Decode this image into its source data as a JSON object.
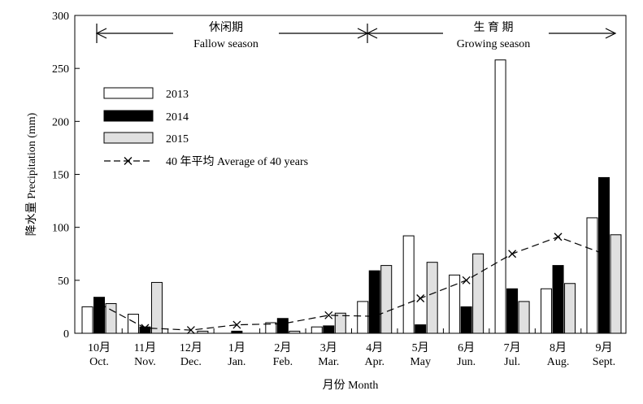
{
  "chart_data": {
    "type": "bar",
    "ylabel": "降水量 Precipitation (mm)",
    "xlabel": "月份 Month",
    "ylim": [
      0,
      300
    ],
    "yticks": [
      0,
      50,
      100,
      150,
      200,
      250,
      300
    ],
    "categories_cn": [
      "10月",
      "11月",
      "12月",
      "1月",
      "2月",
      "3月",
      "4月",
      "5月",
      "6月",
      "7月",
      "8月",
      "9月"
    ],
    "categories_en": [
      "Oct.",
      "Nov.",
      "Dec.",
      "Jan.",
      "Feb.",
      "Mar.",
      "Apr.",
      "May",
      "Jun.",
      "Jul.",
      "Aug.",
      "Sept."
    ],
    "series": [
      {
        "name": "2013",
        "kind": "bar",
        "color": "#ffffff",
        "values": [
          25,
          18,
          0,
          0,
          10,
          6,
          30,
          92,
          55,
          258,
          42,
          109
        ]
      },
      {
        "name": "2014",
        "kind": "bar",
        "color": "#000000",
        "values": [
          34,
          6,
          0,
          2,
          14,
          7,
          59,
          8,
          25,
          42,
          64,
          147
        ]
      },
      {
        "name": "2015",
        "kind": "bar",
        "color": "#e0e0e0",
        "values": [
          28,
          48,
          2,
          0,
          2,
          19,
          64,
          67,
          75,
          30,
          47,
          93
        ]
      },
      {
        "name": "40 年平均 Average of 40 years",
        "kind": "line",
        "style": "dashed",
        "marker": "x",
        "values": [
          28,
          5,
          3,
          8,
          9,
          17,
          16,
          33,
          50,
          75,
          91,
          75
        ]
      }
    ],
    "periods": [
      {
        "cn": "休闲期",
        "en": "Fallow season"
      },
      {
        "cn": "生 育 期",
        "en": "Growing season"
      }
    ],
    "legend_position": "upper-left",
    "grid": false
  }
}
